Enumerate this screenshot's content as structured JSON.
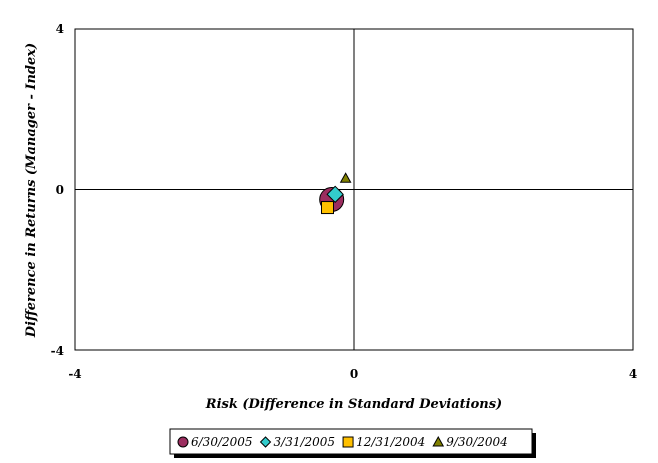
{
  "chart_data": {
    "type": "scatter",
    "title": "",
    "xlabel": "Risk (Difference in Standard Deviations)",
    "ylabel": "Difference in Returns (Manager - Index)",
    "xlim": [
      -4,
      4
    ],
    "ylim": [
      -4,
      4
    ],
    "x_ticks": [
      "-4",
      "0",
      "4"
    ],
    "y_ticks": [
      "4",
      "0",
      "-4"
    ],
    "grid": false,
    "reference_lines": [
      "x = 0",
      "y = 0"
    ],
    "legend_position": "bottom-center",
    "series": [
      {
        "name": "6/30/2005",
        "marker": "circle",
        "color": "#9B2D5F",
        "x": -0.32,
        "y": -0.25
      },
      {
        "name": "3/31/2005",
        "marker": "diamond",
        "color": "#33CCCC",
        "x": -0.27,
        "y": -0.12
      },
      {
        "name": "12/31/2004",
        "marker": "square",
        "color": "#FFC000",
        "x": -0.38,
        "y": -0.45
      },
      {
        "name": "9/30/2004",
        "marker": "triangle",
        "color": "#808000",
        "x": -0.12,
        "y": 0.28
      }
    ]
  }
}
